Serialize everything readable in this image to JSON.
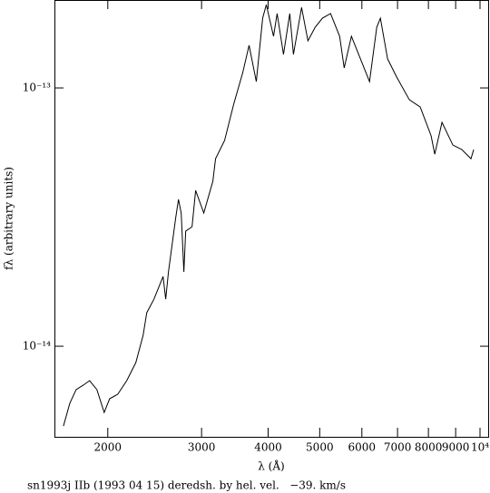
{
  "chart_data": {
    "type": "line",
    "xlabel": "λ (Å)",
    "ylabel": "fλ (arbitrary units)",
    "footer": "sn1993j IIb (1993 04 15) deredsh. by hel. vel.   −39. km/s",
    "log_x": true,
    "log_y": true,
    "color": "#000000",
    "xlim": [
      1588,
      10400
    ],
    "ylim": [
      4.46e-15,
      2.19e-13
    ],
    "xticks": [
      2000,
      3000,
      4000,
      5000,
      6000,
      7000,
      8000,
      9000,
      {
        "value": 10000,
        "label": "10⁴"
      }
    ],
    "yticks": [
      {
        "value": 1e-14,
        "label": "10⁻¹⁴"
      },
      {
        "value": 1e-13,
        "label": "10⁻¹³"
      }
    ],
    "x": [
      1651,
      1697,
      1744,
      1799,
      1849,
      1908,
      1969,
      2016,
      2088,
      2171,
      2258,
      2330,
      2367,
      2442,
      2540,
      2569,
      2600,
      2683,
      2715,
      2747,
      2779,
      2801,
      2879,
      2924,
      3029,
      3150,
      3187,
      3314,
      3447,
      3585,
      3684,
      3801,
      3907,
      3969,
      4095,
      4159,
      4275,
      4393,
      4463,
      4623,
      4752,
      4903,
      5059,
      5240,
      5450,
      5558,
      5735,
      6011,
      6202,
      6399,
      6500,
      6706,
      6974,
      7367,
      7722,
      8095,
      8222,
      8484,
      8892,
      9247,
      9616,
      9730
    ],
    "values": [
      4.91e-15,
      6.01e-15,
      6.79e-15,
      7.07e-15,
      7.36e-15,
      6.79e-15,
      5.54e-15,
      6.26e-15,
      6.52e-15,
      7.36e-15,
      8.65e-15,
      1.102e-14,
      1.348e-14,
      1.522e-14,
      1.863e-14,
      1.522e-14,
      1.94e-14,
      3.15e-14,
      3.7e-14,
      3.28e-14,
      1.94e-14,
      2.79e-14,
      2.9e-14,
      4.01e-14,
      3.28e-14,
      4.35e-14,
      5.32e-14,
      6.26e-14,
      8.65e-14,
      1.147e-13,
      1.462e-13,
      1.058e-13,
      1.863e-13,
      2.1e-13,
      1.585e-13,
      1.94e-13,
      1.348e-13,
      1.94e-13,
      1.348e-13,
      2.05e-13,
      1.522e-13,
      1.718e-13,
      1.863e-13,
      1.94e-13,
      1.585e-13,
      1.195e-13,
      1.585e-13,
      1.243e-13,
      1.058e-13,
      1.718e-13,
      1.863e-13,
      1.295e-13,
      1.102e-13,
      9e-14,
      8.44e-14,
      6.52e-14,
      5.54e-14,
      7.36e-14,
      6.01e-14,
      5.77e-14,
      5.32e-14,
      5.77e-14
    ]
  }
}
